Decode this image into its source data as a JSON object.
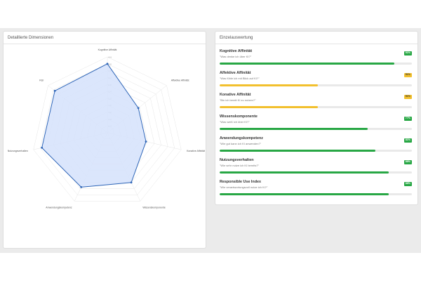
{
  "colors": {
    "green": "#28a745",
    "yellow": "#f2c02e",
    "yellow_badge_text": "#333333",
    "radar_stroke": "#2f66b8",
    "radar_fill": "#d5e2fb"
  },
  "left_panel": {
    "title": "Detaillierte Dimensionen"
  },
  "radar": {
    "ticks": [
      "0.4",
      "0.8",
      "1.2",
      "1.6",
      "2.0",
      "2.4",
      "2.8",
      "3.2",
      "3.6",
      "4.0",
      "4.4"
    ],
    "max": 4.4,
    "axes": [
      {
        "label": "Kognitive Affinität",
        "value": 4.0
      },
      {
        "label": "Affektive Affinität",
        "value": 2.3
      },
      {
        "label": "Konative Affinität",
        "value": 2.3
      },
      {
        "label": "Wissenskomponente",
        "value": 3.2
      },
      {
        "label": "Anwendungskompetenz",
        "value": 3.5
      },
      {
        "label": "Nutzungsverhalten",
        "value": 3.9
      },
      {
        "label": "RUI",
        "value": 3.9
      }
    ]
  },
  "right_panel": {
    "title": "Einzelauswertung",
    "items": [
      {
        "title": "Kognitive Affinität",
        "question": "\"Was denke ich über KI?\"",
        "badge": "91%",
        "percent": 91,
        "color": "green"
      },
      {
        "title": "Affektive Affinität",
        "question": "\"Was fühle ich mit Blick auf KI?\"",
        "badge": "51%",
        "percent": 51,
        "color": "yellow"
      },
      {
        "title": "Konative Affinität",
        "question": "\"Bin ich bereit KI zu nutzen?\"",
        "badge": "51%",
        "percent": 51,
        "color": "yellow"
      },
      {
        "title": "Wissenskomponente",
        "question": "\"Was weiß ich über KI?\"",
        "badge": "77%",
        "percent": 77,
        "color": "green"
      },
      {
        "title": "Anwendungskompetenz",
        "question": "\"Wie gut kann ich KI anwenden?\"",
        "badge": "81%",
        "percent": 81,
        "color": "green"
      },
      {
        "title": "Nutzungsverhalten",
        "question": "\"Wie sehr nutze ich KI bereits?\"",
        "badge": "88%",
        "percent": 88,
        "color": "green"
      },
      {
        "title": "Responsible Use Index",
        "question": "\"Wie verantwortungsvoll nutze ich KI?\"",
        "badge": "88%",
        "percent": 88,
        "color": "green"
      }
    ]
  }
}
